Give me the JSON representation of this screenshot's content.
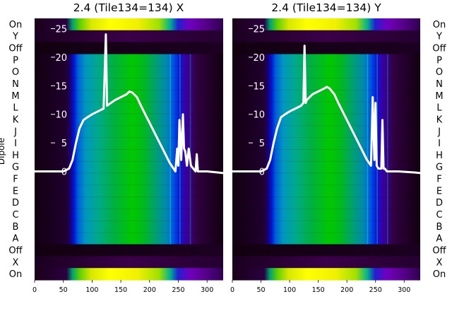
{
  "chart_data": [
    {
      "type": "heatmap",
      "title": "2.4 (Tile134=134) X",
      "ylabel": "Dipole",
      "x_ticks": [
        "0",
        "50",
        "100",
        "150",
        "200",
        "250",
        "300"
      ],
      "xlim": [
        0,
        328
      ],
      "overlay_yticks": [
        "0",
        "5",
        "10",
        "15",
        "20",
        "25"
      ],
      "overlay_ylim": [
        -19,
        26.8
      ],
      "row_labels": [
        "On",
        "Y",
        "Off",
        "P",
        "O",
        "N",
        "M",
        "L",
        "K",
        "J",
        "I",
        "H",
        "G",
        "F",
        "E",
        "D",
        "C",
        "B",
        "A",
        "Off",
        "X",
        "On"
      ],
      "overlay_line": {
        "color": "#ffffff",
        "x": [
          0,
          50,
          60,
          66,
          72,
          78,
          85,
          92,
          100,
          110,
          120,
          124,
          126,
          130,
          140,
          150,
          160,
          165,
          170,
          178,
          185,
          195,
          205,
          215,
          225,
          235,
          245,
          248,
          250,
          252,
          255,
          258,
          260,
          262,
          265,
          268,
          272,
          280,
          282,
          284,
          290,
          300,
          320,
          328
        ],
        "y": [
          0,
          0,
          0.5,
          2,
          5,
          7.5,
          9,
          9.5,
          10,
          10.5,
          11,
          24,
          11.5,
          11.8,
          12.5,
          13,
          13.5,
          14,
          13.8,
          13,
          11.5,
          9.5,
          7.5,
          5.5,
          3.5,
          1.5,
          0,
          4,
          1,
          9,
          2,
          10,
          4,
          3.5,
          1,
          4,
          1,
          0,
          3,
          0,
          0,
          0,
          -0.2,
          -0.3
        ]
      }
    },
    {
      "type": "heatmap",
      "title": "2.4 (Tile134=134) Y",
      "ylabel": "",
      "x_ticks": [
        "0",
        "50",
        "100",
        "150",
        "200",
        "250",
        "300"
      ],
      "xlim": [
        0,
        328
      ],
      "overlay_yticks": [
        "0",
        "5",
        "10",
        "15",
        "20",
        "25"
      ],
      "overlay_ylim": [
        -19,
        26.8
      ],
      "row_labels": [
        "On",
        "Y",
        "Off",
        "P",
        "O",
        "N",
        "M",
        "L",
        "K",
        "J",
        "I",
        "H",
        "G",
        "F",
        "E",
        "D",
        "C",
        "B",
        "A",
        "Off",
        "X",
        "On"
      ],
      "overlay_line": {
        "color": "#ffffff",
        "x": [
          0,
          50,
          60,
          66,
          72,
          78,
          85,
          92,
          100,
          110,
          120,
          124,
          126,
          128,
          130,
          140,
          150,
          160,
          165,
          170,
          178,
          185,
          195,
          205,
          215,
          225,
          235,
          242,
          245,
          248,
          250,
          252,
          255,
          260,
          262,
          264,
          266,
          270,
          290,
          320,
          328
        ],
        "y": [
          0,
          0,
          0.5,
          2,
          5,
          7.5,
          9.5,
          10,
          10.5,
          11,
          11.5,
          12,
          22,
          12,
          12.5,
          13.5,
          14,
          14.5,
          14.8,
          14.5,
          13.5,
          12,
          10,
          8,
          6,
          4,
          2,
          1,
          13,
          2,
          12,
          1,
          0.5,
          0.5,
          9,
          0.5,
          0.5,
          0,
          0,
          -0.2,
          -0.3
        ]
      }
    }
  ]
}
